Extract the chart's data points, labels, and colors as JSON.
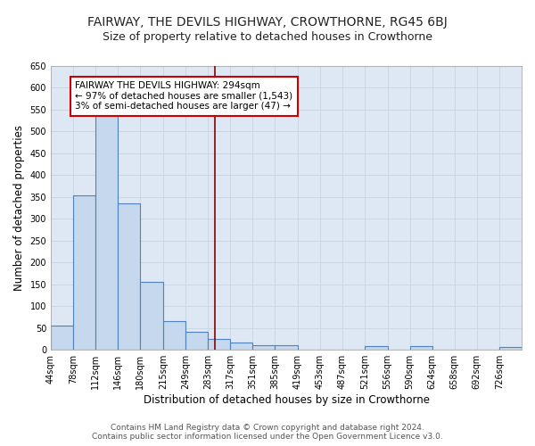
{
  "title": "FAIRWAY, THE DEVILS HIGHWAY, CROWTHORNE, RG45 6BJ",
  "subtitle": "Size of property relative to detached houses in Crowthorne",
  "xlabel": "Distribution of detached houses by size in Crowthorne",
  "ylabel": "Number of detached properties",
  "bin_edges": [
    44,
    78,
    112,
    146,
    180,
    215,
    249,
    283,
    317,
    351,
    385,
    419,
    453,
    487,
    521,
    556,
    590,
    624,
    658,
    692,
    726,
    760
  ],
  "bin_labels": [
    "44sqm",
    "78sqm",
    "112sqm",
    "146sqm",
    "180sqm",
    "215sqm",
    "249sqm",
    "283sqm",
    "317sqm",
    "351sqm",
    "385sqm",
    "419sqm",
    "453sqm",
    "487sqm",
    "521sqm",
    "556sqm",
    "590sqm",
    "624sqm",
    "658sqm",
    "692sqm",
    "726sqm"
  ],
  "counts": [
    55,
    353,
    536,
    336,
    155,
    66,
    42,
    25,
    16,
    10,
    10,
    0,
    0,
    0,
    8,
    0,
    8,
    0,
    0,
    0,
    6
  ],
  "bar_color": "#c5d8ed",
  "bar_edge_color": "#4f81bd",
  "background_color": "#dde8f4",
  "grid_color": "#c8d4e0",
  "red_line_x": 294,
  "annotation_text": "FAIRWAY THE DEVILS HIGHWAY: 294sqm\n← 97% of detached houses are smaller (1,543)\n3% of semi-detached houses are larger (47) →",
  "annotation_box_color": "#ffffff",
  "annotation_box_edge_color": "#cc0000",
  "ylim": [
    0,
    650
  ],
  "yticks": [
    0,
    50,
    100,
    150,
    200,
    250,
    300,
    350,
    400,
    450,
    500,
    550,
    600,
    650
  ],
  "footer_line1": "Contains HM Land Registry data © Crown copyright and database right 2024.",
  "footer_line2": "Contains public sector information licensed under the Open Government Licence v3.0.",
  "title_fontsize": 10,
  "subtitle_fontsize": 9,
  "xlabel_fontsize": 8.5,
  "ylabel_fontsize": 8.5,
  "tick_fontsize": 7,
  "annotation_fontsize": 7.5,
  "footer_fontsize": 6.5
}
